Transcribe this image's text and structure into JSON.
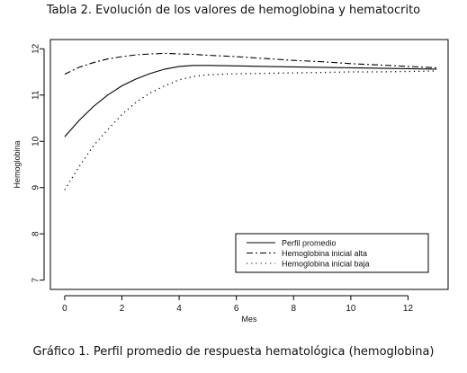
{
  "header": {
    "title": "Tabla 2. Evolución de los valores de hemoglobina y hematocrito"
  },
  "footer": {
    "caption": "Gráfico 1. Perfil promedio de respuesta hematológica (hemoglobina)"
  },
  "chart_data": {
    "type": "line",
    "xlabel": "Mes",
    "ylabel": "Hemoglobina",
    "xlim": [
      -0.5,
      13.4
    ],
    "ylim": [
      6.8,
      12.2
    ],
    "xticks": [
      0,
      2,
      4,
      6,
      8,
      10,
      12
    ],
    "yticks": [
      7,
      8,
      9,
      10,
      11,
      12
    ],
    "grid": false,
    "legend_position": "bottom-right",
    "series": [
      {
        "name": "Perfil promedio",
        "style": "solid",
        "x": [
          0,
          0.5,
          1,
          1.5,
          2,
          2.5,
          3,
          3.5,
          4,
          4.5,
          5,
          6,
          7,
          8,
          9,
          10,
          11,
          12,
          13
        ],
        "values": [
          10.1,
          10.45,
          10.75,
          11.0,
          11.2,
          11.35,
          11.47,
          11.56,
          11.62,
          11.64,
          11.64,
          11.63,
          11.62,
          11.61,
          11.6,
          11.59,
          11.58,
          11.57,
          11.56
        ]
      },
      {
        "name": "Hemoglobina inicial alta",
        "style": "dashdot",
        "x": [
          0,
          0.5,
          1,
          1.5,
          2,
          2.5,
          3,
          3.5,
          4,
          4.5,
          5,
          6,
          7,
          8,
          9,
          10,
          11,
          12,
          13
        ],
        "values": [
          11.45,
          11.6,
          11.7,
          11.78,
          11.83,
          11.87,
          11.89,
          11.9,
          11.89,
          11.88,
          11.86,
          11.83,
          11.79,
          11.75,
          11.72,
          11.68,
          11.65,
          11.62,
          11.59
        ]
      },
      {
        "name": "Hemoglobina inicial baja",
        "style": "dotted",
        "x": [
          0,
          0.5,
          1,
          1.5,
          2,
          2.5,
          3,
          3.5,
          4,
          4.5,
          5,
          6,
          7,
          8,
          9,
          10,
          11,
          12,
          13
        ],
        "values": [
          8.95,
          9.45,
          9.9,
          10.25,
          10.58,
          10.85,
          11.05,
          11.2,
          11.33,
          11.4,
          11.44,
          11.46,
          11.47,
          11.48,
          11.49,
          11.5,
          11.5,
          11.51,
          11.52
        ]
      }
    ]
  }
}
